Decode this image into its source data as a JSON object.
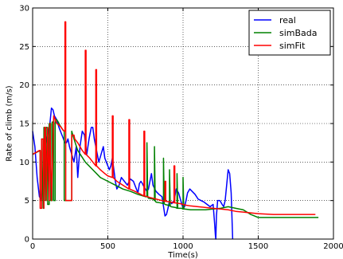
{
  "chart_data": {
    "type": "line",
    "title": "",
    "xlabel": "Time(s)",
    "ylabel": "Rate of climb (m/s)",
    "xlim": [
      0,
      2000
    ],
    "ylim": [
      0,
      30
    ],
    "xticks": [
      0,
      500,
      1000,
      1500,
      2000
    ],
    "yticks": [
      0,
      5,
      10,
      15,
      20,
      25,
      30
    ],
    "grid": true,
    "grid_style": "dotted",
    "legend_position": "top-right",
    "series": [
      {
        "name": "real",
        "color": "#0000ff",
        "x": [
          0,
          15,
          30,
          45,
          55,
          65,
          75,
          85,
          95,
          105,
          115,
          125,
          135,
          145,
          160,
          175,
          185,
          195,
          205,
          215,
          225,
          235,
          245,
          260,
          275,
          290,
          300,
          315,
          330,
          345,
          360,
          375,
          390,
          400,
          410,
          420,
          430,
          440,
          455,
          470,
          480,
          490,
          500,
          510,
          520,
          530,
          540,
          550,
          560,
          575,
          590,
          610,
          630,
          650,
          670,
          690,
          700,
          710,
          720,
          730,
          740,
          750,
          760,
          770,
          780,
          790,
          800,
          820,
          840,
          860,
          880,
          890,
          900,
          910,
          925,
          940,
          955,
          970,
          985,
          1000,
          1010,
          1020,
          1030,
          1045,
          1060,
          1080,
          1100,
          1120,
          1140,
          1160,
          1180,
          1200,
          1210,
          1215,
          1218,
          1222,
          1230,
          1245,
          1260,
          1270,
          1280,
          1290,
          1300,
          1310,
          1320,
          1325,
          1330
        ],
        "y": [
          14,
          12,
          8,
          5.5,
          5.2,
          8,
          6,
          12,
          13,
          14,
          15,
          17,
          16.8,
          16,
          15.5,
          14.5,
          14,
          13.5,
          13,
          12.5,
          12.5,
          13,
          12,
          11,
          10,
          12,
          8,
          12,
          14,
          13.5,
          11,
          13,
          14.5,
          14.5,
          13,
          12,
          11,
          10,
          11,
          12,
          10.5,
          10,
          9.5,
          9,
          9.5,
          10.5,
          9,
          7.5,
          6.5,
          7,
          8,
          7.5,
          7,
          7.8,
          7.5,
          6.5,
          6,
          7.2,
          7.5,
          7.2,
          6.8,
          6.5,
          6.2,
          6.5,
          7.5,
          8.5,
          7,
          6.2,
          5.8,
          5.5,
          3.0,
          3.2,
          4.0,
          5.0,
          4.6,
          5.0,
          6.5,
          6.0,
          5.0,
          4.0,
          4.2,
          5.0,
          6.0,
          6.5,
          6.2,
          5.8,
          5.2,
          5.0,
          4.8,
          4.5,
          4.2,
          4.5,
          2.0,
          0.5,
          0.0,
          3.0,
          5.0,
          5.0,
          4.5,
          4.2,
          5.0,
          7.0,
          9.0,
          8.5,
          6.0,
          3.0,
          0.0
        ]
      },
      {
        "name": "simBada",
        "color": "#008000",
        "x": [
          0,
          50,
          50,
          60,
          60,
          70,
          75,
          75,
          80,
          85,
          90,
          90,
          100,
          100,
          110,
          110,
          120,
          120,
          130,
          130,
          140,
          140,
          150,
          150,
          160,
          170,
          180,
          190,
          200,
          210,
          210,
          220,
          230,
          240,
          250,
          260,
          260,
          275,
          300,
          350,
          400,
          450,
          500,
          550,
          600,
          650,
          700,
          750,
          760,
          760,
          765,
          770,
          800,
          810,
          810,
          815,
          820,
          850,
          870,
          870,
          875,
          880,
          900,
          910,
          910,
          915,
          920,
          950,
          960,
          960,
          965,
          970,
          990,
          1000,
          1000,
          1005,
          1010,
          1050,
          1100,
          1150,
          1200,
          1250,
          1300,
          1350,
          1400,
          1450,
          1500,
          1600,
          1700,
          1800,
          1900
        ],
        "y": [
          11,
          11.5,
          5,
          5,
          13,
          4,
          4,
          14.5,
          14.5,
          5,
          5,
          14.5,
          14.5,
          4.5,
          4.5,
          15,
          15,
          5,
          5,
          15.2,
          15.2,
          5,
          5,
          15.5,
          15.5,
          15.2,
          14.8,
          14.5,
          14.2,
          14,
          5,
          5,
          5,
          5,
          5,
          5,
          14,
          13,
          11.5,
          10,
          9,
          8,
          7.5,
          7,
          6.5,
          6.2,
          5.8,
          5.5,
          5.5,
          12.5,
          5.5,
          5.3,
          5.2,
          5.0,
          12.0,
          5.0,
          4.8,
          4.7,
          4.6,
          10.5,
          4.6,
          4.5,
          4.4,
          4.3,
          9.0,
          4.3,
          4.2,
          4.1,
          4.0,
          8.5,
          4.0,
          4.0,
          4.0,
          3.9,
          8.0,
          3.9,
          3.9,
          3.8,
          3.8,
          3.8,
          3.9,
          4.0,
          4.2,
          4.0,
          3.8,
          3.2,
          2.8,
          2.8,
          2.8,
          2.8,
          2.8
        ]
      },
      {
        "name": "simFit",
        "color": "#ff0000",
        "x": [
          0,
          45,
          50,
          50,
          60,
          60,
          70,
          75,
          75,
          80,
          85,
          90,
          90,
          100,
          100,
          110,
          110,
          115,
          115,
          125,
          125,
          140,
          140,
          150,
          160,
          175,
          190,
          200,
          210,
          215,
          215,
          220,
          220,
          225,
          240,
          260,
          260,
          275,
          280,
          300,
          330,
          350,
          350,
          355,
          355,
          380,
          400,
          420,
          420,
          425,
          425,
          450,
          480,
          500,
          530,
          530,
          535,
          535,
          560,
          600,
          640,
          640,
          645,
          645,
          680,
          720,
          740,
          740,
          745,
          745,
          780,
          820,
          860,
          880,
          880,
          885,
          885,
          920,
          940,
          940,
          945,
          945,
          980,
          1000,
          1020,
          1050,
          1100,
          1150,
          1200,
          1250,
          1300,
          1350,
          1400,
          1450,
          1500,
          1600,
          1700,
          1800,
          1880
        ],
        "y": [
          11,
          11.5,
          11.5,
          4,
          4,
          13,
          13,
          4,
          4,
          14.5,
          14.5,
          5,
          5,
          14.5,
          14.5,
          5,
          5,
          15,
          15,
          5,
          5,
          16,
          16,
          15.5,
          15,
          14.8,
          14.5,
          14.2,
          14,
          14,
          28.2,
          28.2,
          5,
          5,
          5,
          5,
          13.5,
          13.5,
          13,
          12.5,
          11.5,
          11,
          24.5,
          24.5,
          11,
          10.5,
          10,
          9.5,
          22,
          22,
          9.5,
          9,
          8.5,
          8.2,
          8,
          16,
          16,
          8,
          7.5,
          7,
          6.5,
          15.5,
          15.5,
          6.5,
          6.2,
          5.8,
          5.6,
          14,
          14,
          5.6,
          5.4,
          5.2,
          5.0,
          4.9,
          7.5,
          7.5,
          4.9,
          4.8,
          4.7,
          9.5,
          9.5,
          4.7,
          4.6,
          4.5,
          4.4,
          4.3,
          4.2,
          4.1,
          4.0,
          3.9,
          3.8,
          3.6,
          3.5,
          3.4,
          3.3,
          3.2,
          3.2,
          3.2,
          3.2
        ]
      }
    ]
  }
}
